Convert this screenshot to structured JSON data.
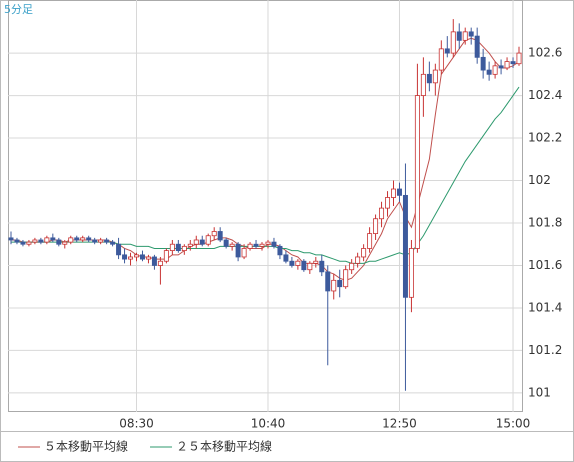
{
  "chart_data": {
    "type": "candlestick",
    "label": "5分足",
    "categories": [
      null,
      null,
      null,
      null,
      null,
      null,
      null,
      null,
      null,
      null,
      null,
      null,
      null,
      null,
      null,
      null,
      null,
      null,
      null,
      null,
      null,
      "08:30",
      null,
      null,
      null,
      null,
      null,
      null,
      null,
      null,
      null,
      null,
      null,
      null,
      null,
      null,
      null,
      null,
      null,
      null,
      null,
      null,
      null,
      "10:40",
      null,
      null,
      null,
      null,
      null,
      null,
      null,
      null,
      null,
      null,
      null,
      null,
      null,
      null,
      null,
      null,
      null,
      null,
      null,
      null,
      null,
      "12:50",
      null,
      null,
      null,
      null,
      null,
      null,
      null,
      null,
      null,
      null,
      null,
      null,
      null,
      null,
      null,
      null,
      null,
      null,
      "15:00",
      null
    ],
    "up_color": "#c83232",
    "down_color": "#3d5a9c",
    "ohlc": [
      [
        101.73,
        101.76,
        101.7,
        101.72
      ],
      [
        101.72,
        101.73,
        101.7,
        101.71
      ],
      [
        101.71,
        101.72,
        101.69,
        101.7
      ],
      [
        101.7,
        101.72,
        101.69,
        101.71
      ],
      [
        101.71,
        101.73,
        101.7,
        101.72
      ],
      [
        101.72,
        101.73,
        101.7,
        101.71
      ],
      [
        101.71,
        101.74,
        101.7,
        101.73
      ],
      [
        101.73,
        101.75,
        101.71,
        101.72
      ],
      [
        101.72,
        101.73,
        101.69,
        101.7
      ],
      [
        101.7,
        101.72,
        101.68,
        101.71
      ],
      [
        101.71,
        101.74,
        101.7,
        101.73
      ],
      [
        101.73,
        101.74,
        101.71,
        101.72
      ],
      [
        101.72,
        101.74,
        101.71,
        101.73
      ],
      [
        101.73,
        101.74,
        101.71,
        101.72
      ],
      [
        101.72,
        101.73,
        101.7,
        101.71
      ],
      [
        101.71,
        101.73,
        101.7,
        101.72
      ],
      [
        101.72,
        101.73,
        101.7,
        101.71
      ],
      [
        101.71,
        101.72,
        101.69,
        101.7
      ],
      [
        101.7,
        101.73,
        101.63,
        101.65
      ],
      [
        101.65,
        101.68,
        101.61,
        101.63
      ],
      [
        101.63,
        101.66,
        101.6,
        101.64
      ],
      [
        101.64,
        101.66,
        101.62,
        101.65
      ],
      [
        101.65,
        101.67,
        101.62,
        101.63
      ],
      [
        101.63,
        101.65,
        101.61,
        101.64
      ],
      [
        101.64,
        101.65,
        101.58,
        101.6
      ],
      [
        101.6,
        101.64,
        101.51,
        101.62
      ],
      [
        101.62,
        101.68,
        101.61,
        101.67
      ],
      [
        101.67,
        101.72,
        101.65,
        101.7
      ],
      [
        101.7,
        101.72,
        101.66,
        101.67
      ],
      [
        101.67,
        101.7,
        101.65,
        101.69
      ],
      [
        101.69,
        101.72,
        101.67,
        101.7
      ],
      [
        101.7,
        101.74,
        101.68,
        101.72
      ],
      [
        101.72,
        101.74,
        101.69,
        101.7
      ],
      [
        101.7,
        101.75,
        101.69,
        101.74
      ],
      [
        101.74,
        101.78,
        101.72,
        101.76
      ],
      [
        101.76,
        101.78,
        101.71,
        101.72
      ],
      [
        101.72,
        101.73,
        101.68,
        101.69
      ],
      [
        101.69,
        101.71,
        101.67,
        101.7
      ],
      [
        101.7,
        101.71,
        101.62,
        101.64
      ],
      [
        101.64,
        101.7,
        101.63,
        101.68
      ],
      [
        101.68,
        101.71,
        101.67,
        101.7
      ],
      [
        101.7,
        101.72,
        101.68,
        101.69
      ],
      [
        101.69,
        101.71,
        101.67,
        101.7
      ],
      [
        101.7,
        101.72,
        101.68,
        101.71
      ],
      [
        101.71,
        101.73,
        101.68,
        101.69
      ],
      [
        101.69,
        101.7,
        101.63,
        101.65
      ],
      [
        101.65,
        101.67,
        101.61,
        101.62
      ],
      [
        101.62,
        101.64,
        101.59,
        101.6
      ],
      [
        101.6,
        101.63,
        101.58,
        101.62
      ],
      [
        101.62,
        101.63,
        101.57,
        101.58
      ],
      [
        101.58,
        101.62,
        101.56,
        101.61
      ],
      [
        101.61,
        101.64,
        101.59,
        101.62
      ],
      [
        101.62,
        101.65,
        101.55,
        101.57
      ],
      [
        101.57,
        101.6,
        101.13,
        101.48
      ],
      [
        101.48,
        101.56,
        101.44,
        101.53
      ],
      [
        101.53,
        101.58,
        101.45,
        101.5
      ],
      [
        101.5,
        101.6,
        101.49,
        101.58
      ],
      [
        101.58,
        101.63,
        101.56,
        101.61
      ],
      [
        101.61,
        101.66,
        101.59,
        101.64
      ],
      [
        101.64,
        101.7,
        101.62,
        101.68
      ],
      [
        101.68,
        101.78,
        101.66,
        101.75
      ],
      [
        101.75,
        101.84,
        101.72,
        101.82
      ],
      [
        101.82,
        101.9,
        101.78,
        101.87
      ],
      [
        101.87,
        101.95,
        101.83,
        101.92
      ],
      [
        101.92,
        102.0,
        101.88,
        101.96
      ],
      [
        101.96,
        101.99,
        101.9,
        101.93
      ],
      [
        101.93,
        102.08,
        101.01,
        101.45
      ],
      [
        101.45,
        101.72,
        101.38,
        101.68
      ],
      [
        101.68,
        102.55,
        101.66,
        102.4
      ],
      [
        102.4,
        102.58,
        102.3,
        102.5
      ],
      [
        102.5,
        102.56,
        102.42,
        102.46
      ],
      [
        102.46,
        102.55,
        102.4,
        102.52
      ],
      [
        102.52,
        102.66,
        102.5,
        102.62
      ],
      [
        102.62,
        102.68,
        102.58,
        102.6
      ],
      [
        102.6,
        102.76,
        102.58,
        102.7
      ],
      [
        102.7,
        102.74,
        102.62,
        102.66
      ],
      [
        102.66,
        102.72,
        102.64,
        102.7
      ],
      [
        102.7,
        102.72,
        102.64,
        102.68
      ],
      [
        102.68,
        102.72,
        102.55,
        102.58
      ],
      [
        102.58,
        102.62,
        102.48,
        102.52
      ],
      [
        102.52,
        102.56,
        102.47,
        102.5
      ],
      [
        102.5,
        102.56,
        102.48,
        102.54
      ],
      [
        102.54,
        102.57,
        102.5,
        102.53
      ],
      [
        102.53,
        102.58,
        102.52,
        102.56
      ],
      [
        102.56,
        102.58,
        102.53,
        102.55
      ],
      [
        102.55,
        102.63,
        102.54,
        102.6
      ]
    ],
    "series": [
      {
        "name": "５本移動平均線",
        "color": "#c0504d",
        "values": [
          101.72,
          101.72,
          101.71,
          101.71,
          101.71,
          101.71,
          101.71,
          101.72,
          101.72,
          101.71,
          101.72,
          101.72,
          101.72,
          101.72,
          101.72,
          101.72,
          101.72,
          101.71,
          101.7,
          101.68,
          101.67,
          101.65,
          101.64,
          101.64,
          101.63,
          101.63,
          101.63,
          101.65,
          101.65,
          101.67,
          101.69,
          101.7,
          101.7,
          101.71,
          101.72,
          101.73,
          101.73,
          101.72,
          101.7,
          101.69,
          101.68,
          101.68,
          101.68,
          101.7,
          101.7,
          101.69,
          101.67,
          101.65,
          101.64,
          101.61,
          101.61,
          101.61,
          101.6,
          101.57,
          101.56,
          101.54,
          101.53,
          101.54,
          101.57,
          101.6,
          101.65,
          101.7,
          101.75,
          101.82,
          101.86,
          101.9,
          101.83,
          101.78,
          101.88,
          101.99,
          102.1,
          102.31,
          102.5,
          102.54,
          102.58,
          102.62,
          102.66,
          102.67,
          102.66,
          102.63,
          102.6,
          102.56,
          102.53,
          102.53,
          102.54,
          102.56
        ]
      },
      {
        "name": "２５本移動平均線",
        "color": "#2e9a6e",
        "values": [
          101.71,
          101.71,
          101.71,
          101.71,
          101.71,
          101.71,
          101.71,
          101.71,
          101.71,
          101.71,
          101.71,
          101.71,
          101.71,
          101.71,
          101.71,
          101.71,
          101.71,
          101.71,
          101.7,
          101.7,
          101.7,
          101.69,
          101.69,
          101.69,
          101.68,
          101.68,
          101.68,
          101.68,
          101.68,
          101.68,
          101.68,
          101.68,
          101.68,
          101.68,
          101.68,
          101.69,
          101.69,
          101.69,
          101.69,
          101.69,
          101.69,
          101.69,
          101.69,
          101.69,
          101.69,
          101.68,
          101.68,
          101.67,
          101.67,
          101.66,
          101.66,
          101.65,
          101.65,
          101.64,
          101.63,
          101.62,
          101.62,
          101.61,
          101.61,
          101.61,
          101.62,
          101.62,
          101.63,
          101.64,
          101.65,
          101.66,
          101.65,
          101.66,
          101.7,
          101.74,
          101.79,
          101.84,
          101.89,
          101.94,
          101.99,
          102.04,
          102.09,
          102.13,
          102.17,
          102.21,
          102.25,
          102.29,
          102.32,
          102.36,
          102.4,
          102.44
        ]
      }
    ],
    "ylim": [
      100.91,
      102.85
    ],
    "yticks": [
      101,
      101.2,
      101.4,
      101.6,
      101.8,
      102,
      102.2,
      102.4,
      102.6
    ],
    "grid": true
  }
}
